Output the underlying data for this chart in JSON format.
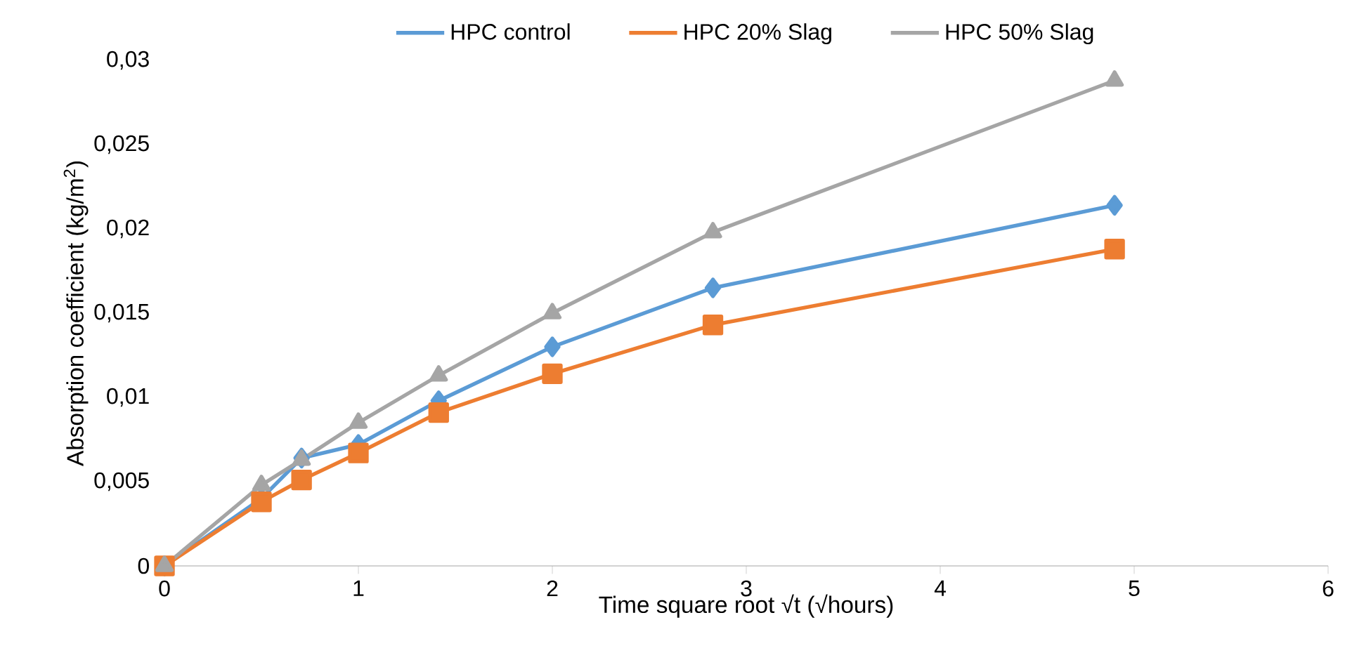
{
  "chart_data": {
    "type": "line",
    "xlabel": "Time square root √t (√hours)",
    "ylabel": "Absorption coefficient (kg/m$^{2}$)",
    "xlim": [
      0,
      6
    ],
    "xticks": [
      0,
      1,
      2,
      3,
      4,
      5,
      6
    ],
    "ylim": [
      0,
      0.03
    ],
    "yticks": [
      0,
      {
        "value": 0.005,
        "label": "0,005"
      },
      {
        "value": 0.01,
        "label": "0,01"
      },
      {
        "value": 0.015,
        "label": "0,015"
      },
      {
        "value": 0.02,
        "label": "0,02"
      },
      {
        "value": 0.025,
        "label": "0,025"
      },
      {
        "value": 0.03,
        "label": "0,03"
      }
    ],
    "grid": false,
    "legend": "top",
    "line_style": "solid",
    "series": [
      {
        "name": "HPC control",
        "color": "#5b9bd5",
        "marker": "diamond",
        "x": [
          0,
          0.5,
          0.707,
          1,
          1.414,
          2,
          2.828,
          4.899
        ],
        "values": [
          0,
          0.004,
          0.0064,
          0.0072,
          0.0098,
          0.013,
          0.0165,
          0.0214
        ]
      },
      {
        "name": "HPC 20% Slag",
        "color": "#ed7d31",
        "marker": "square",
        "x": [
          0,
          0.5,
          0.707,
          1,
          1.414,
          2,
          2.828,
          4.899
        ],
        "values": [
          0,
          0.0038,
          0.0051,
          0.0067,
          0.0091,
          0.0114,
          0.0143,
          0.0188
        ]
      },
      {
        "name": "HPC 50% Slag",
        "color": "#a5a5a5",
        "marker": "triangle",
        "x": [
          0,
          0.5,
          0.707,
          1,
          1.414,
          2,
          2.828,
          4.899
        ],
        "values": [
          0,
          0.0048,
          0.0063,
          0.0085,
          0.0113,
          0.015,
          0.0198,
          0.0288
        ]
      }
    ]
  }
}
